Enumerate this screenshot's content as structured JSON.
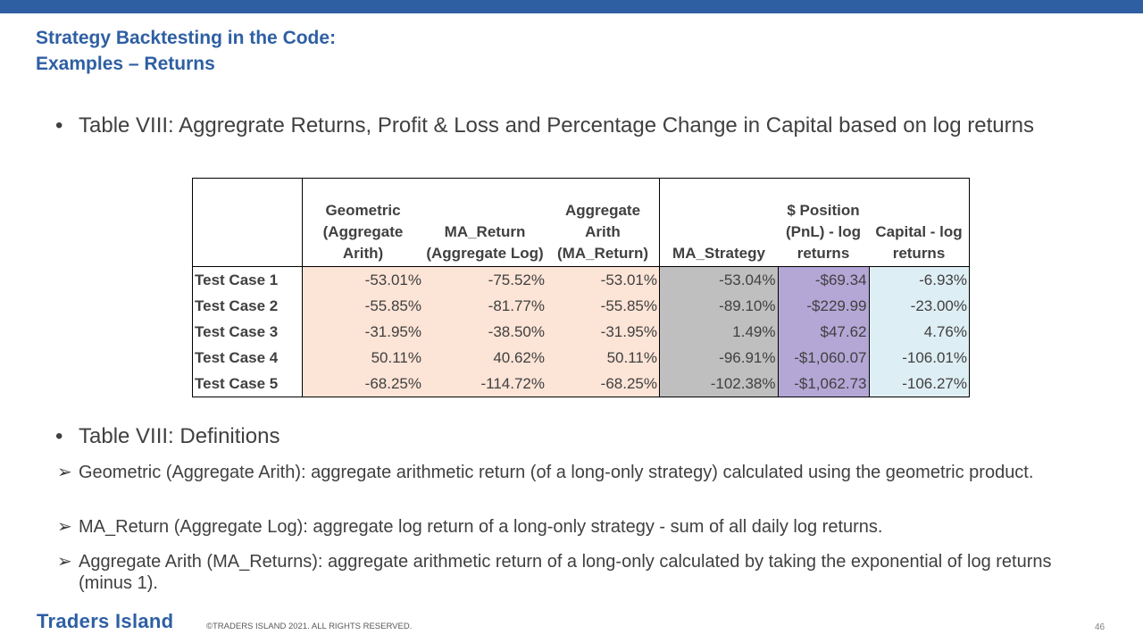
{
  "title_line1": "Strategy Backtesting in the Code:",
  "title_line2": "Examples – Returns",
  "bullet1": "Table VIII: Aggregrate Returns, Profit & Loss and Percentage Change in Capital based on log returns",
  "bullet2": "Table VIII: Definitions",
  "bullet_symbol": "•",
  "arrow_symbol": "➢",
  "table": {
    "headers": {
      "h0": "",
      "h1": "Geometric (Aggregate Arith)",
      "h2": "MA_Return (Aggregate Log)",
      "h3": "Aggregate Arith (MA_Return)",
      "h4": "MA_Strategy",
      "h5": "$ Position (PnL) - log returns",
      "h6": "Capital - log returns"
    },
    "rows": [
      {
        "label": "Test Case 1",
        "geometric": "-53.01%",
        "ma_return": "-75.52%",
        "aggregate_arith": "-53.01%",
        "ma_strategy": "-53.04%",
        "position": "-$69.34",
        "capital": "-6.93%"
      },
      {
        "label": "Test Case 2",
        "geometric": "-55.85%",
        "ma_return": "-81.77%",
        "aggregate_arith": "-55.85%",
        "ma_strategy": "-89.10%",
        "position": "-$229.99",
        "capital": "-23.00%"
      },
      {
        "label": "Test Case 3",
        "geometric": "-31.95%",
        "ma_return": "-38.50%",
        "aggregate_arith": "-31.95%",
        "ma_strategy": "1.49%",
        "position": "$47.62",
        "capital": "4.76%"
      },
      {
        "label": "Test Case 4",
        "geometric": "50.11%",
        "ma_return": "40.62%",
        "aggregate_arith": "50.11%",
        "ma_strategy": "-96.91%",
        "position": "-$1,060.07",
        "capital": "-106.01%"
      },
      {
        "label": "Test Case 5",
        "geometric": "-68.25%",
        "ma_return": "-114.72%",
        "aggregate_arith": "-68.25%",
        "ma_strategy": "-102.38%",
        "position": "-$1,062.73",
        "capital": "-106.27%"
      }
    ],
    "colors": {
      "peach": "#fce4d6",
      "gray": "#bfbfbf",
      "purple": "#b4a7d6",
      "light_blue": "#deeef5"
    }
  },
  "definitions": [
    "Geometric (Aggregate Arith): aggregate arithmetic return (of a long-only strategy) calculated using the geometric product.",
    "MA_Return (Aggregate Log): aggregate log return of a long-only strategy - sum of all daily log returns.",
    "Aggregate Arith (MA_Returns): aggregate arithmetic return of a long-only  calculated by taking the exponential of log returns (minus 1)."
  ],
  "footer": {
    "brand": "Traders Island",
    "copyright": "©TRADERS ISLAND 2021. ALL RIGHTS RESERVED.",
    "page_number": "46"
  },
  "brand_color": "#2e5fa3"
}
